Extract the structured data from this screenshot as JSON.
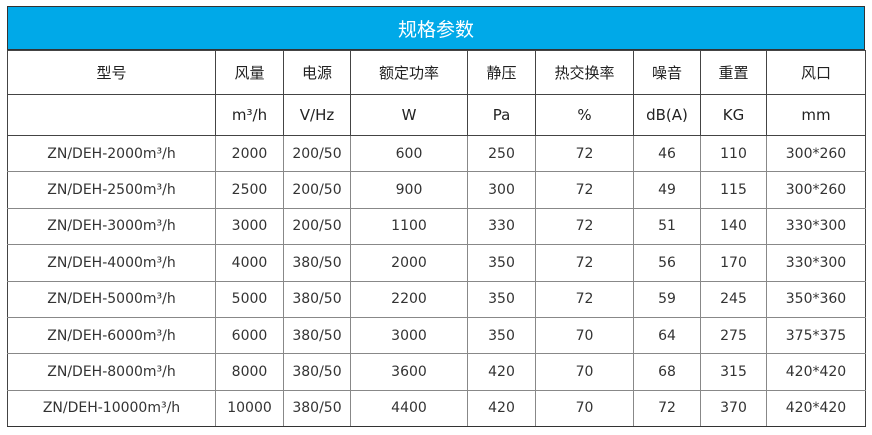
{
  "title": "规格参数",
  "headers": [
    "型号",
    "风量",
    "电源",
    "额定功率",
    "静压",
    "热交换率",
    "噪音",
    "重置",
    "风口"
  ],
  "units": [
    "",
    "m³/h",
    "V/Hz",
    "W",
    "Pa",
    "%",
    "dB(A)",
    "KG",
    "mm"
  ],
  "rows": [
    [
      "ZN/DEH-2000m³/h",
      "2000",
      "200/50",
      "600",
      "250",
      "72",
      "46",
      "110",
      "300*260"
    ],
    [
      "ZN/DEH-2500m³/h",
      "2500",
      "200/50",
      "900",
      "300",
      "72",
      "49",
      "115",
      "300*260"
    ],
    [
      "ZN/DEH-3000m³/h",
      "3000",
      "200/50",
      "1100",
      "330",
      "72",
      "51",
      "140",
      "330*300"
    ],
    [
      "ZN/DEH-4000m³/h",
      "4000",
      "380/50",
      "2000",
      "350",
      "72",
      "56",
      "170",
      "330*300"
    ],
    [
      "ZN/DEH-5000m³/h",
      "5000",
      "380/50",
      "2200",
      "350",
      "72",
      "59",
      "245",
      "350*360"
    ],
    [
      "ZN/DEH-6000m³/h",
      "6000",
      "380/50",
      "3000",
      "350",
      "70",
      "64",
      "275",
      "375*375"
    ],
    [
      "ZN/DEH-8000m³/h",
      "8000",
      "380/50",
      "3600",
      "420",
      "70",
      "68",
      "315",
      "420*420"
    ],
    [
      "ZN/DEH-10000m³/h",
      "10000",
      "380/50",
      "4400",
      "420",
      "70",
      "72",
      "370",
      "420*420"
    ]
  ],
  "colors": {
    "title_bar": "#00a9e8"
  }
}
